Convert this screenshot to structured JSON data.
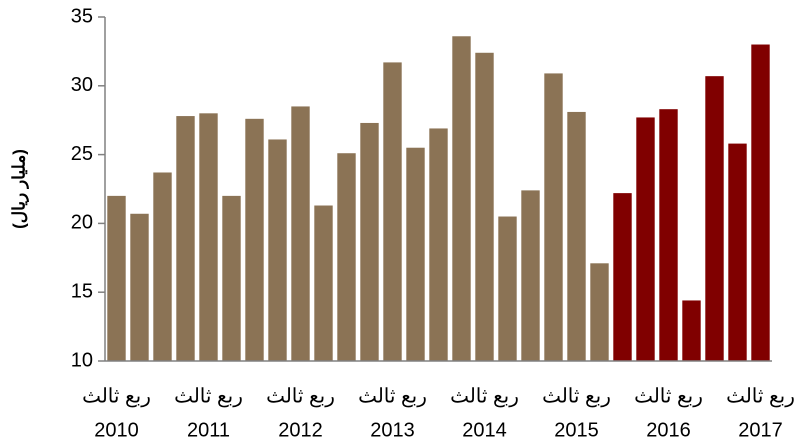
{
  "chart_data": {
    "type": "bar",
    "y_label": "(مليار ريال)",
    "categories": [
      "ربع ثالث",
      null,
      null,
      null,
      "ربع ثالث",
      null,
      null,
      null,
      "ربع ثالث",
      null,
      null,
      null,
      "ربع ثالث",
      null,
      null,
      null,
      "ربع ثالث",
      null,
      null,
      null,
      "ربع ثالث",
      null,
      null,
      null,
      "ربع ثالث",
      null,
      null,
      null,
      "ربع ثالث"
    ],
    "years": [
      "2010",
      null,
      null,
      null,
      "2011",
      null,
      null,
      null,
      "2012",
      null,
      null,
      null,
      "2013",
      null,
      null,
      null,
      "2014",
      null,
      null,
      null,
      "2015",
      null,
      null,
      null,
      "2016",
      null,
      null,
      null,
      "2017"
    ],
    "values": [
      22.0,
      20.7,
      23.7,
      27.8,
      28.0,
      22.0,
      27.6,
      26.1,
      28.5,
      21.3,
      25.1,
      27.3,
      31.7,
      25.5,
      26.9,
      33.6,
      32.4,
      20.5,
      22.4,
      30.9,
      28.1,
      17.1,
      22.2,
      27.7,
      28.3,
      14.4,
      30.7,
      25.8,
      33.0
    ],
    "colors": [
      "#8b7355",
      "#8b7355",
      "#8b7355",
      "#8b7355",
      "#8b7355",
      "#8b7355",
      "#8b7355",
      "#8b7355",
      "#8b7355",
      "#8b7355",
      "#8b7355",
      "#8b7355",
      "#8b7355",
      "#8b7355",
      "#8b7355",
      "#8b7355",
      "#8b7355",
      "#8b7355",
      "#8b7355",
      "#8b7355",
      "#8b7355",
      "#8b7355",
      "#800000",
      "#800000",
      "#800000",
      "#800000",
      "#800000",
      "#800000",
      "#800000"
    ],
    "ylim": [
      10,
      35
    ],
    "yticks": [
      10,
      15,
      20,
      25,
      30,
      35
    ],
    "grid": false
  }
}
